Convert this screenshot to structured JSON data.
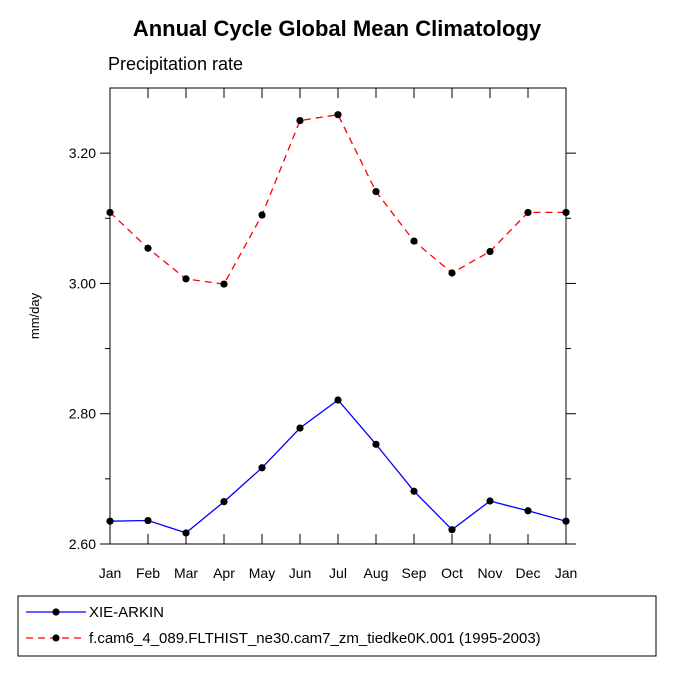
{
  "chart_data": {
    "type": "line",
    "title": "Annual Cycle Global Mean Climatology",
    "subtitle": "Precipitation rate",
    "xlabel": "",
    "ylabel": "mm/day",
    "categories": [
      "Jan",
      "Feb",
      "Mar",
      "Apr",
      "May",
      "Jun",
      "Jul",
      "Aug",
      "Sep",
      "Oct",
      "Nov",
      "Dec",
      "Jan"
    ],
    "ylim": [
      2.6,
      3.3
    ],
    "yticks": [
      2.6,
      2.8,
      3.0,
      3.2
    ],
    "ytick_labels": [
      "2.60",
      "2.80",
      "3.00",
      "3.20"
    ],
    "minor_yticks": [
      2.7,
      2.9,
      3.1
    ],
    "grid": false,
    "legend_position": "bottom",
    "series": [
      {
        "name": "XIE-ARKIN",
        "color": "#0000ff",
        "style": "solid",
        "values": [
          2.635,
          2.636,
          2.617,
          2.665,
          2.717,
          2.778,
          2.821,
          2.753,
          2.681,
          2.622,
          2.666,
          2.651,
          2.635
        ]
      },
      {
        "name": "f.cam6_4_089.FLTHIST_ne30.cam7_zm_tiedke0K.001 (1995-2003)",
        "color": "#ff0000",
        "style": "dashed",
        "values": [
          3.109,
          3.054,
          3.007,
          2.999,
          3.105,
          3.25,
          3.259,
          3.141,
          3.065,
          3.016,
          3.049,
          3.109,
          3.109
        ]
      }
    ]
  }
}
